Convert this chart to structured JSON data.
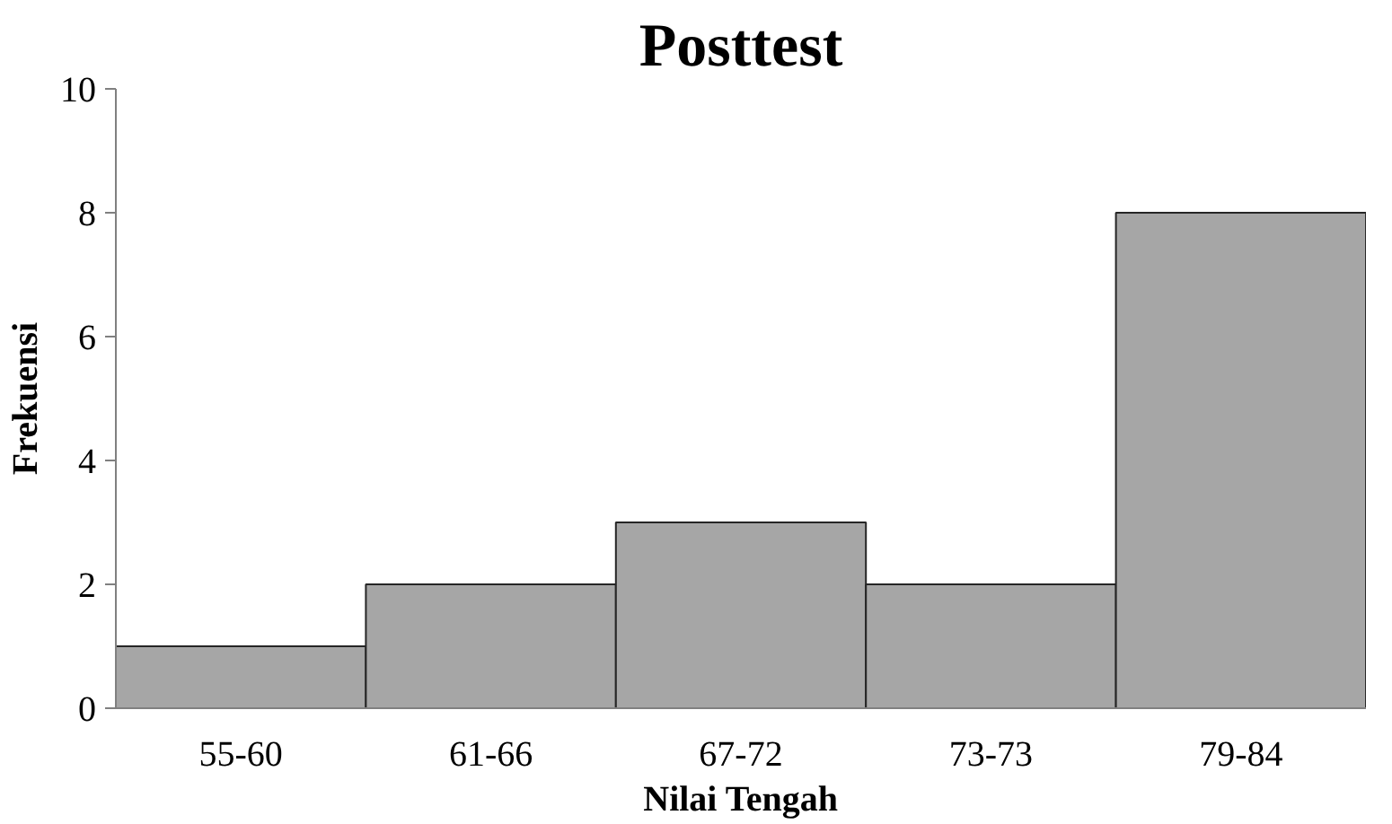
{
  "chart_data": {
    "type": "bar",
    "title": "Posttest",
    "xlabel": "Nilai Tengah",
    "ylabel": "Frekuensi",
    "categories": [
      "55-60",
      "61-66",
      "67-72",
      "73-73",
      "79-84"
    ],
    "values": [
      1,
      2,
      3,
      2,
      8
    ],
    "color": "#a6a6a6",
    "ylim": [
      0,
      10
    ],
    "yticks": [
      0,
      2,
      4,
      6,
      8,
      10
    ],
    "grid": false
  }
}
